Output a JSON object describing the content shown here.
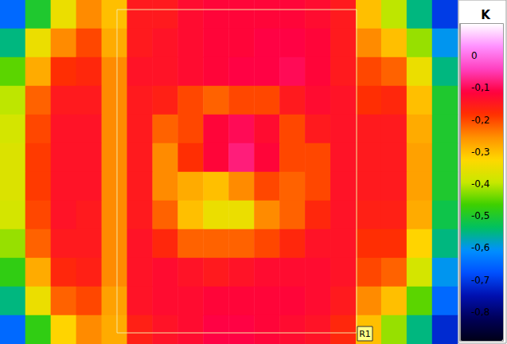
{
  "chart_data": {
    "type": "heatmap",
    "tick_labels": false,
    "cells": [
      [
        -0.65,
        -0.5,
        -0.35,
        -0.25,
        -0.3,
        -0.15,
        -0.15,
        -0.13,
        -0.12,
        -0.12,
        -0.12,
        -0.12,
        -0.13,
        -0.15,
        -0.3,
        -0.4,
        -0.55,
        -0.7
      ],
      [
        -0.55,
        -0.35,
        -0.25,
        -0.2,
        -0.28,
        -0.15,
        -0.14,
        -0.13,
        -0.12,
        -0.12,
        -0.11,
        -0.11,
        -0.12,
        -0.15,
        -0.25,
        -0.3,
        -0.42,
        -0.6
      ],
      [
        -0.45,
        -0.28,
        -0.18,
        -0.17,
        -0.25,
        -0.14,
        -0.14,
        -0.13,
        -0.12,
        -0.11,
        -0.11,
        -0.1,
        -0.12,
        -0.15,
        -0.2,
        -0.22,
        -0.35,
        -0.55
      ],
      [
        -0.4,
        -0.22,
        -0.15,
        -0.15,
        -0.25,
        -0.15,
        -0.16,
        -0.2,
        -0.22,
        -0.2,
        -0.2,
        -0.15,
        -0.13,
        -0.14,
        -0.18,
        -0.17,
        -0.3,
        -0.5
      ],
      [
        -0.38,
        -0.2,
        -0.14,
        -0.14,
        -0.25,
        -0.15,
        -0.22,
        -0.2,
        -0.12,
        -0.1,
        -0.13,
        -0.2,
        -0.15,
        -0.14,
        -0.15,
        -0.15,
        -0.28,
        -0.5
      ],
      [
        -0.37,
        -0.19,
        -0.14,
        -0.14,
        -0.25,
        -0.15,
        -0.25,
        -0.18,
        -0.12,
        -0.08,
        -0.12,
        -0.2,
        -0.2,
        -0.14,
        -0.15,
        -0.15,
        -0.27,
        -0.5
      ],
      [
        -0.37,
        -0.19,
        -0.14,
        -0.14,
        -0.25,
        -0.15,
        -0.25,
        -0.28,
        -0.3,
        -0.25,
        -0.2,
        -0.22,
        -0.2,
        -0.14,
        -0.15,
        -0.15,
        -0.27,
        -0.5
      ],
      [
        -0.38,
        -0.2,
        -0.14,
        -0.15,
        -0.25,
        -0.15,
        -0.22,
        -0.3,
        -0.35,
        -0.35,
        -0.25,
        -0.22,
        -0.17,
        -0.14,
        -0.16,
        -0.16,
        -0.28,
        -0.52
      ],
      [
        -0.42,
        -0.22,
        -0.15,
        -0.15,
        -0.25,
        -0.14,
        -0.17,
        -0.22,
        -0.22,
        -0.22,
        -0.2,
        -0.17,
        -0.14,
        -0.14,
        -0.18,
        -0.18,
        -0.32,
        -0.55
      ],
      [
        -0.48,
        -0.28,
        -0.17,
        -0.16,
        -0.25,
        -0.14,
        -0.13,
        -0.14,
        -0.15,
        -0.14,
        -0.13,
        -0.13,
        -0.13,
        -0.14,
        -0.2,
        -0.22,
        -0.38,
        -0.6
      ],
      [
        -0.55,
        -0.35,
        -0.22,
        -0.2,
        -0.27,
        -0.14,
        -0.13,
        -0.13,
        -0.12,
        -0.12,
        -0.12,
        -0.12,
        -0.13,
        -0.15,
        -0.25,
        -0.3,
        -0.45,
        -0.65
      ],
      [
        -0.65,
        -0.48,
        -0.32,
        -0.25,
        -0.28,
        -0.16,
        -0.14,
        -0.13,
        -0.11,
        -0.11,
        -0.12,
        -0.13,
        -0.14,
        -0.17,
        -0.3,
        -0.42,
        -0.55,
        -0.72
      ]
    ],
    "colorbar": {
      "title": "K",
      "range": [
        -0.89,
        0.1
      ],
      "ticks": [
        0,
        {
          "value": -0.1,
          "label": "-0,1"
        },
        {
          "value": -0.2,
          "label": "-0,2"
        },
        {
          "value": -0.3,
          "label": "-0,3"
        },
        {
          "value": -0.4,
          "label": "-0,4"
        },
        {
          "value": -0.5,
          "label": "-0,5"
        },
        {
          "value": -0.6,
          "label": "-0,6"
        },
        {
          "value": -0.7,
          "label": "-0,7"
        },
        {
          "value": -0.8,
          "label": "-0,8"
        }
      ]
    },
    "annotations": [
      "R1"
    ]
  }
}
